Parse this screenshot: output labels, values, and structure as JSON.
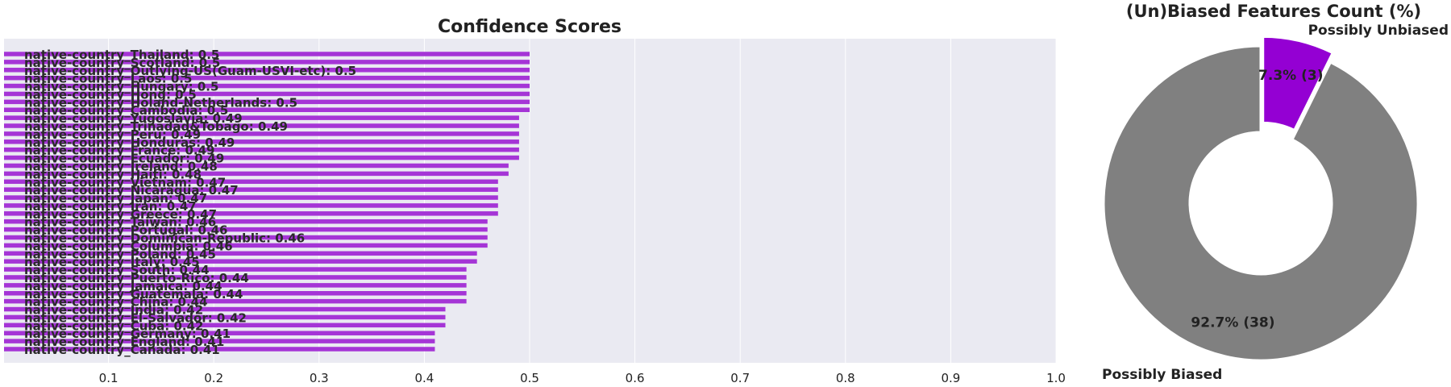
{
  "chart_data": [
    {
      "type": "bar",
      "orientation": "horizontal",
      "title": "Confidence Scores",
      "xlim": [
        0,
        1.0
      ],
      "xticks": [
        "0.1",
        "0.2",
        "0.3",
        "0.4",
        "0.5",
        "0.6",
        "0.7",
        "0.8",
        "0.9",
        "1.0"
      ],
      "grid": true,
      "bar_color": "#a535d6",
      "background": "#eaeaf2",
      "categories": [
        "native-country_Thailand",
        "native-country_Scotland",
        "native-country_Outlying-US(Guam-USVI-etc)",
        "native-country_Laos",
        "native-country_Hungary",
        "native-country_Hong",
        "native-country_Holand-Netherlands",
        "native-country_Cambodia",
        "native-country_Yugoslavia",
        "native-country_Trinadad&Tobago",
        "native-country_Peru",
        "native-country_Honduras",
        "native-country_France",
        "native-country_Ecuador",
        "native-country_Ireland",
        "native-country_Haiti",
        "native-country_Vietnam",
        "native-country_Nicaragua",
        "native-country_Japan",
        "native-country_Iran",
        "native-country_Greece",
        "native-country_Taiwan",
        "native-country_Portugal",
        "native-country_Dominican-Republic",
        "native-country_Columbia",
        "native-country_Poland",
        "native-country_Italy",
        "native-country_South",
        "native-country_Puerto-Rico",
        "native-country_Jamaica",
        "native-country_Guatemala",
        "native-country_China",
        "native-country_India",
        "native-country_El-Salvador",
        "native-country_Cuba",
        "native-country_Germany",
        "native-country_England",
        "native-country_Canada"
      ],
      "values": [
        0.5,
        0.5,
        0.5,
        0.5,
        0.5,
        0.5,
        0.5,
        0.5,
        0.49,
        0.49,
        0.49,
        0.49,
        0.49,
        0.49,
        0.48,
        0.48,
        0.47,
        0.47,
        0.47,
        0.47,
        0.47,
        0.46,
        0.46,
        0.46,
        0.46,
        0.45,
        0.45,
        0.44,
        0.44,
        0.44,
        0.44,
        0.44,
        0.42,
        0.42,
        0.42,
        0.41,
        0.41,
        0.41
      ]
    },
    {
      "type": "pie",
      "donut": true,
      "title": "(Un)Biased Features Count (%)",
      "slices": [
        {
          "label": "Possibly Unbiased",
          "value": 3,
          "percent_label": "7.3% (3)",
          "color": "#9400d3",
          "explode": true
        },
        {
          "label": "Possibly Biased",
          "value": 38,
          "percent_label": "92.7% (38)",
          "color": "#808080",
          "explode": false
        }
      ]
    }
  ]
}
